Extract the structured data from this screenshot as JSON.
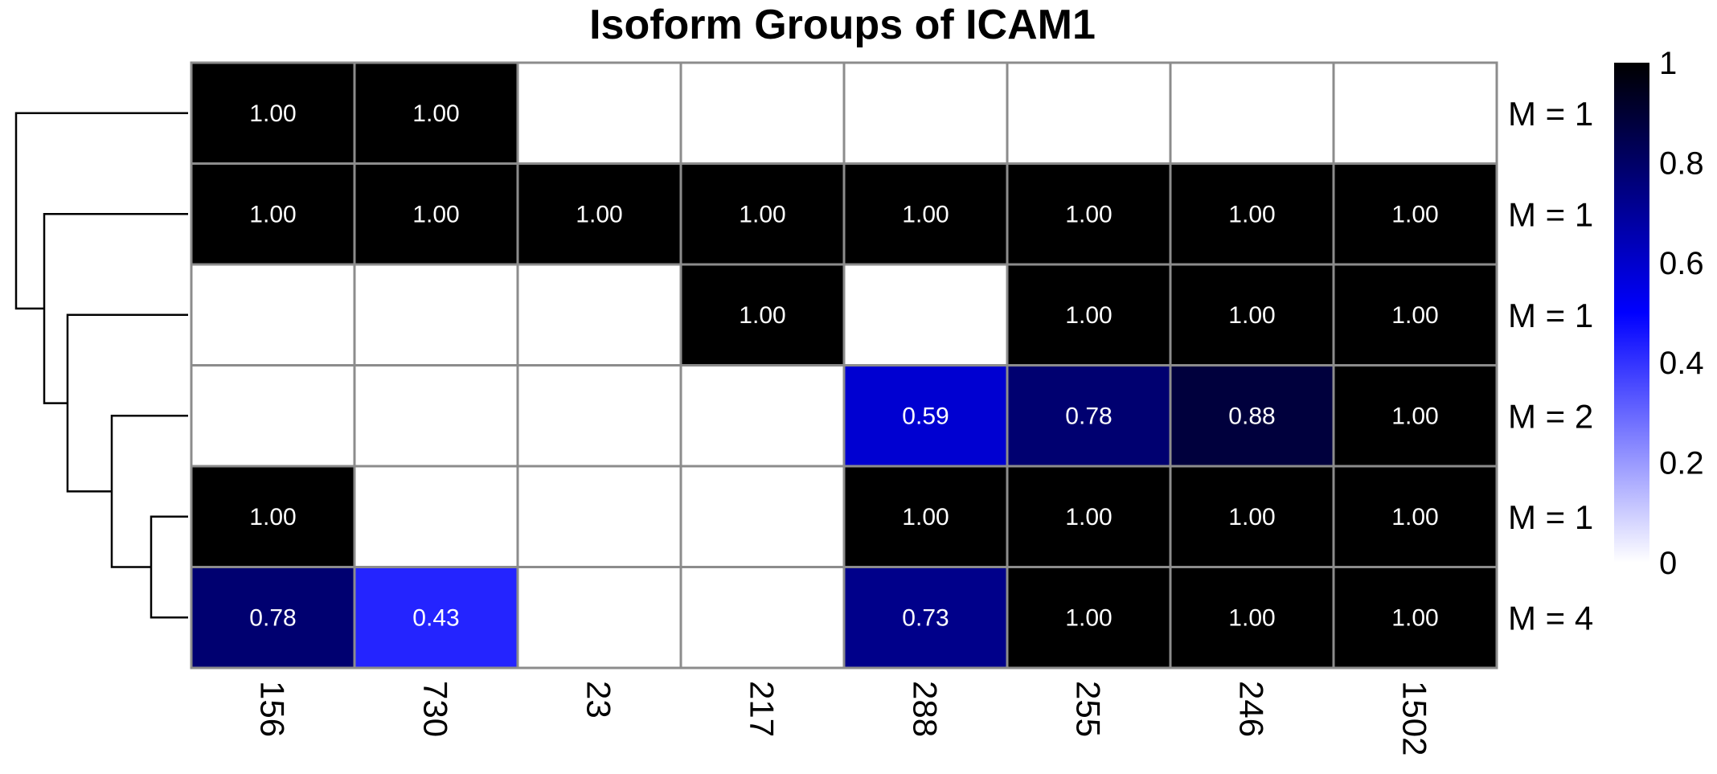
{
  "chart_data": {
    "type": "heatmap",
    "title": "Isoform Groups of ICAM1",
    "columns": [
      "156",
      "730",
      "23",
      "217",
      "288",
      "255",
      "246",
      "1502"
    ],
    "rows": [
      "M = 1",
      "M = 1",
      "M = 1",
      "M = 2",
      "M = 1",
      "M = 4"
    ],
    "values": [
      [
        1.0,
        1.0,
        null,
        null,
        null,
        null,
        null,
        null
      ],
      [
        1.0,
        1.0,
        1.0,
        1.0,
        1.0,
        1.0,
        1.0,
        1.0
      ],
      [
        null,
        null,
        null,
        1.0,
        null,
        1.0,
        1.0,
        1.0
      ],
      [
        null,
        null,
        null,
        null,
        0.59,
        0.78,
        0.88,
        1.0
      ],
      [
        1.0,
        null,
        null,
        null,
        1.0,
        1.0,
        1.0,
        1.0
      ],
      [
        0.78,
        0.43,
        null,
        null,
        0.73,
        1.0,
        1.0,
        1.0
      ]
    ],
    "labels": [
      [
        "1.00",
        "1.00",
        "",
        "",
        "",
        "",
        "",
        ""
      ],
      [
        "1.00",
        "1.00",
        "1.00",
        "1.00",
        "1.00",
        "1.00",
        "1.00",
        "1.00"
      ],
      [
        "",
        "",
        "",
        "1.00",
        "",
        "1.00",
        "1.00",
        "1.00"
      ],
      [
        "",
        "",
        "",
        "",
        "0.59",
        "0.78",
        "0.88",
        "1.00"
      ],
      [
        "1.00",
        "",
        "",
        "",
        "1.00",
        "1.00",
        "1.00",
        "1.00"
      ],
      [
        "0.78",
        "0.43",
        "",
        "",
        "0.73",
        "1.00",
        "1.00",
        "1.00"
      ]
    ],
    "color_scale": {
      "range": [
        0,
        1
      ],
      "ticks": [
        "0",
        "0.2",
        "0.4",
        "0.6",
        "0.8",
        "1"
      ],
      "colors": [
        "#ffffff",
        "#0000ff",
        "#000000"
      ]
    },
    "row_dendrogram": true,
    "legend": "right",
    "grid": true
  }
}
